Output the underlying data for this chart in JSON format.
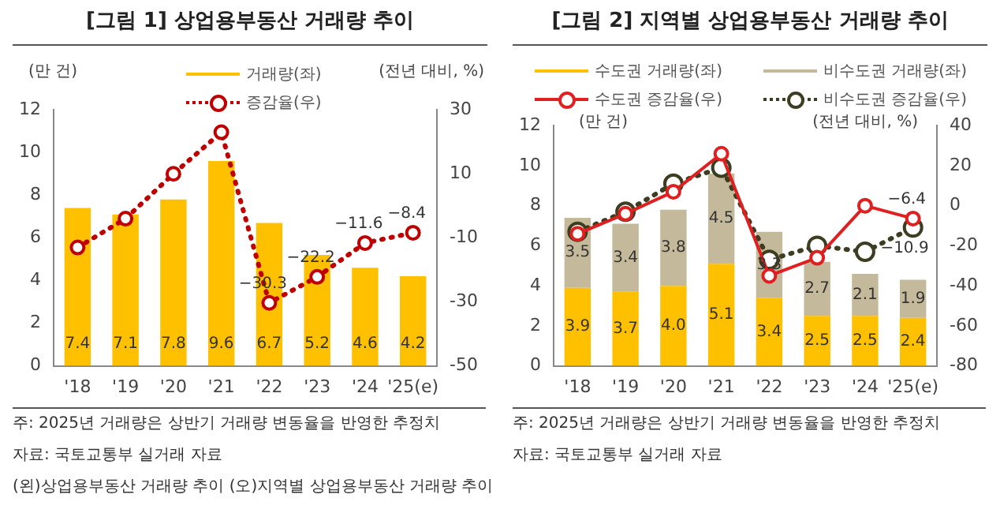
{
  "chart_data": [
    {
      "type": "bar",
      "title": "[그림 1] 상업용부동산 거래량 추이",
      "ylabel": "(만 건)",
      "y2label": "(전년 대비, %)",
      "categories": [
        "'18",
        "'19",
        "'20",
        "'21",
        "'22",
        "'23",
        "'24",
        "'25(e)"
      ],
      "series": [
        {
          "name": "거래량(좌)",
          "color": "#ffc000",
          "values": [
            7.4,
            7.1,
            7.8,
            9.6,
            6.7,
            5.2,
            4.6,
            4.2
          ],
          "value_labels": [
            "7.4",
            "7.1",
            "7.8",
            "9.6",
            "6.7",
            "5.2",
            "4.6",
            "4.2"
          ]
        },
        {
          "name": "증감율(우)",
          "type": "line",
          "axis": "y2",
          "color": "#c00000",
          "line_style": "dotted",
          "marker": "circle",
          "values": [
            -13,
            -4,
            10,
            23,
            -30.3,
            -22.2,
            -11.6,
            -8.4
          ],
          "value_labels": [
            null,
            null,
            null,
            null,
            "−30.3",
            "−22.2",
            "−11.6",
            "−8.4"
          ]
        }
      ],
      "ylim": [
        0,
        12
      ],
      "yticks": [
        0,
        2,
        4,
        6,
        8,
        10,
        12
      ],
      "y2lim": [
        -50,
        30
      ],
      "y2ticks": [
        -50,
        -30,
        -10,
        10,
        30
      ],
      "grid": false,
      "legend": "top",
      "annotations": [
        "주: 2025년 거래량은 상반기 거래량 변동율을 반영한 추정치",
        "자료: 국토교통부 실거래 자료",
        "(왼)상업용부동산 거래량 추이 (오)지역별 상업용부동산 거래량 추이"
      ]
    },
    {
      "type": "bar",
      "title": "[그림 2] 지역별 상업용부동산 거래량 추이",
      "ylabel": "(만 건)",
      "y2label": "(전년 대비, %)",
      "categories": [
        "'18",
        "'19",
        "'20",
        "'21",
        "'22",
        "'23",
        "'24",
        "'25(e)"
      ],
      "stacked": true,
      "series": [
        {
          "name": "수도권 거래량(좌)",
          "color": "#ffc000",
          "values": [
            3.9,
            3.7,
            4.0,
            5.1,
            3.4,
            2.5,
            2.5,
            2.4
          ],
          "value_labels": [
            "3.9",
            "3.7",
            "4.0",
            "5.1",
            "3.4",
            "2.5",
            "2.5",
            "2.4"
          ]
        },
        {
          "name": "비수도권 거래량(좌)",
          "color": "#c4b99a",
          "values": [
            3.5,
            3.4,
            3.8,
            4.5,
            3.3,
            2.7,
            2.1,
            1.9
          ],
          "value_labels": [
            "3.5",
            "3.4",
            "3.8",
            "4.5",
            "3.3",
            "2.7",
            "2.1",
            "1.9"
          ]
        },
        {
          "name": "수도권 증감율(우)",
          "type": "line",
          "axis": "y2",
          "color": "#e02020",
          "line_style": "solid",
          "marker": "circle",
          "values": [
            -14,
            -4,
            7,
            26,
            -35,
            -26,
            0,
            -6.4
          ],
          "value_labels": [
            null,
            null,
            null,
            null,
            null,
            null,
            null,
            "−6.4"
          ]
        },
        {
          "name": "비수도권 증감율(우)",
          "type": "line",
          "axis": "y2",
          "color": "#3d3d22",
          "line_style": "dotted",
          "marker": "circle",
          "values": [
            -13,
            -3,
            11,
            19,
            -27,
            -20,
            -23,
            -10.9
          ],
          "value_labels": [
            null,
            null,
            null,
            null,
            null,
            null,
            null,
            "−10.9"
          ]
        }
      ],
      "ylim": [
        0,
        12
      ],
      "yticks": [
        0,
        2,
        4,
        6,
        8,
        10,
        12
      ],
      "y2lim": [
        -80,
        40
      ],
      "y2ticks": [
        -80,
        -60,
        -40,
        -20,
        0,
        20,
        40
      ],
      "grid": false,
      "legend": "top",
      "annotations": [
        "주: 2025년 거래량은 상반기 거래량 변동율을 반영한 추정치",
        "자료: 국토교통부 실거래 자료"
      ]
    }
  ]
}
